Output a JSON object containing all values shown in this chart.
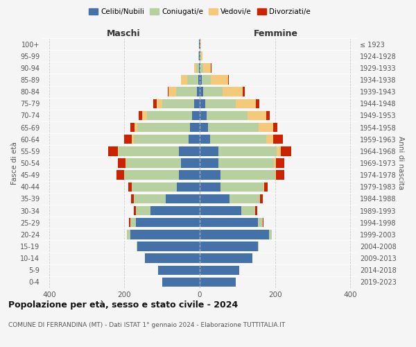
{
  "age_groups": [
    "0-4",
    "5-9",
    "10-14",
    "15-19",
    "20-24",
    "25-29",
    "30-34",
    "35-39",
    "40-44",
    "45-49",
    "50-54",
    "55-59",
    "60-64",
    "65-69",
    "70-74",
    "75-79",
    "80-84",
    "85-89",
    "90-94",
    "95-99",
    "100+"
  ],
  "birth_years": [
    "2019-2023",
    "2014-2018",
    "2009-2013",
    "2004-2008",
    "1999-2003",
    "1994-1998",
    "1989-1993",
    "1984-1988",
    "1979-1983",
    "1974-1978",
    "1969-1973",
    "1964-1968",
    "1959-1963",
    "1954-1958",
    "1949-1953",
    "1944-1948",
    "1939-1943",
    "1934-1938",
    "1929-1933",
    "1924-1928",
    "≤ 1923"
  ],
  "maschi": {
    "celibi": [
      100,
      110,
      145,
      165,
      185,
      170,
      130,
      90,
      60,
      55,
      50,
      55,
      30,
      25,
      20,
      15,
      8,
      4,
      2,
      1,
      1
    ],
    "coniugati": [
      0,
      0,
      0,
      3,
      8,
      15,
      40,
      85,
      120,
      145,
      145,
      160,
      145,
      140,
      120,
      85,
      55,
      30,
      8,
      2,
      1
    ],
    "vedovi": [
      0,
      0,
      0,
      0,
      0,
      0,
      0,
      0,
      0,
      1,
      2,
      3,
      5,
      8,
      12,
      15,
      20,
      15,
      5,
      1,
      0
    ],
    "divorziati": [
      0,
      0,
      0,
      0,
      0,
      2,
      5,
      8,
      10,
      20,
      20,
      25,
      20,
      12,
      10,
      8,
      2,
      0,
      0,
      0,
      0
    ]
  },
  "femmine": {
    "nubili": [
      95,
      105,
      140,
      155,
      185,
      155,
      110,
      80,
      55,
      55,
      50,
      50,
      28,
      22,
      18,
      15,
      10,
      5,
      2,
      1,
      1
    ],
    "coniugate": [
      0,
      0,
      0,
      2,
      6,
      12,
      38,
      80,
      115,
      145,
      148,
      155,
      148,
      135,
      110,
      80,
      50,
      25,
      8,
      2,
      1
    ],
    "vedove": [
      0,
      0,
      0,
      0,
      0,
      0,
      0,
      0,
      1,
      2,
      5,
      10,
      20,
      38,
      48,
      55,
      55,
      45,
      20,
      5,
      1
    ],
    "divorziate": [
      0,
      0,
      0,
      0,
      0,
      2,
      5,
      8,
      10,
      22,
      22,
      28,
      25,
      12,
      10,
      8,
      4,
      2,
      1,
      0,
      0
    ]
  },
  "colors": {
    "celibi": "#4472a8",
    "coniugati": "#b8cfa0",
    "vedovi": "#f5c97a",
    "divorziati": "#cc2200"
  },
  "title": "Popolazione per età, sesso e stato civile - 2024",
  "subtitle": "COMUNE DI FERRANDINA (MT) - Dati ISTAT 1° gennaio 2024 - Elaborazione TUTTITALIA.IT",
  "xlabel_maschi": "Maschi",
  "xlabel_femmine": "Femmine",
  "ylabel": "Fasce di età",
  "ylabel_right": "Anni di nascita",
  "xlim": 420,
  "legend_labels": [
    "Celibi/Nubili",
    "Coniugati/e",
    "Vedovi/e",
    "Divorziati/e"
  ],
  "background_color": "#f5f5f5"
}
